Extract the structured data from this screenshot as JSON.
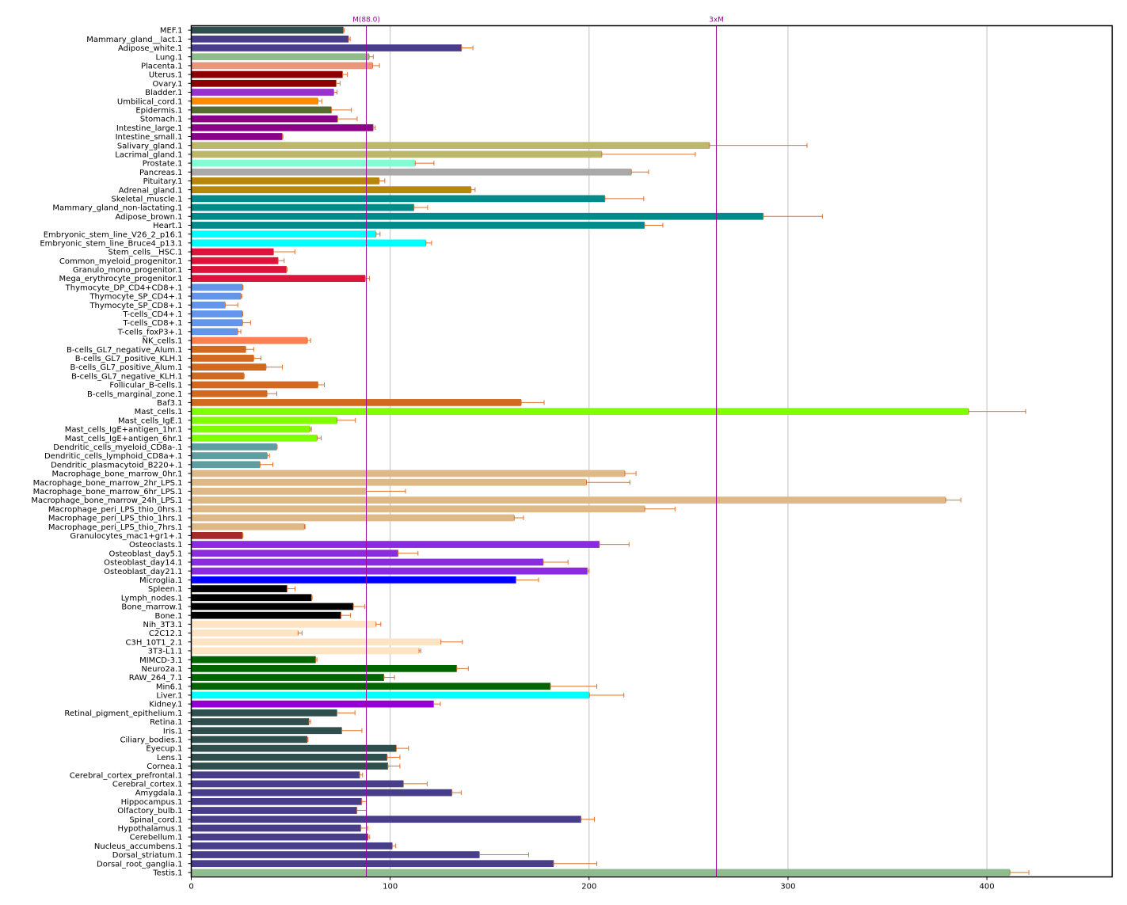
{
  "chart_data": {
    "type": "bar",
    "orientation": "horizontal",
    "title": "",
    "xlabel": "",
    "ylabel": "",
    "xlim": [
      0,
      463
    ],
    "xticks": [
      0,
      100,
      200,
      300,
      400
    ],
    "grid": "vertical",
    "legend": "none",
    "error_bar_color": "#e0702a",
    "reference_lines": [
      {
        "label": "M(88.0)",
        "value": 88.0,
        "color": "#990099"
      },
      {
        "label": "3xM",
        "value": 264.0,
        "color": "#990099"
      }
    ],
    "bars": [
      {
        "label": "MEF.1",
        "value": 76.5,
        "err": 0.5,
        "color": "#2f4f4f"
      },
      {
        "label": "Mammary_gland__lact.1",
        "value": 79.1,
        "err": 0.8,
        "color": "#483d8b"
      },
      {
        "label": "Adipose_white.1",
        "value": 135.9,
        "err": 5.7,
        "color": "#483d8b"
      },
      {
        "label": "Lung.1",
        "value": 89.4,
        "err": 2.1,
        "color": "#8fbc8f"
      },
      {
        "label": "Placenta.1",
        "value": 91.2,
        "err": 3.4,
        "color": "#e9967a"
      },
      {
        "label": "Uterus.1",
        "value": 76.1,
        "err": 2.4,
        "color": "#8b0000"
      },
      {
        "label": "Ovary.1",
        "value": 72.9,
        "err": 1.9,
        "color": "#8b0000"
      },
      {
        "label": "Bladder.1",
        "value": 71.7,
        "err": 1.6,
        "color": "#9932cc"
      },
      {
        "label": "Umbilical_cord.1",
        "value": 63.7,
        "err": 1.9,
        "color": "#ff8c00"
      },
      {
        "label": "Epidermis.1",
        "value": 70.5,
        "err": 10.0,
        "color": "#556b2f"
      },
      {
        "label": "Stomach.1",
        "value": 73.6,
        "err": 9.8,
        "color": "#8b008b"
      },
      {
        "label": "Intestine_large.1",
        "value": 91.5,
        "err": 1.0,
        "color": "#8b008b"
      },
      {
        "label": "Intestine_small.1",
        "value": 45.8,
        "err": 0.3,
        "color": "#8b008b"
      },
      {
        "label": "Salivary_gland.1",
        "value": 260.6,
        "err": 49.0,
        "color": "#bdb76b"
      },
      {
        "label": "Lacrimal_gland.1",
        "value": 206.4,
        "err": 47.0,
        "color": "#bdb76b"
      },
      {
        "label": "Prostate.1",
        "value": 112.6,
        "err": 9.4,
        "color": "#7fffd4"
      },
      {
        "label": "Pancreas.1",
        "value": 221.3,
        "err": 8.6,
        "color": "#a9a9a9"
      },
      {
        "label": "Pituitary.1",
        "value": 94.5,
        "err": 2.8,
        "color": "#b8860b"
      },
      {
        "label": "Adrenal_gland.1",
        "value": 140.7,
        "err": 2.0,
        "color": "#b8860b"
      },
      {
        "label": "Skeletal_muscle.1",
        "value": 208.0,
        "err": 19.5,
        "color": "#008b8b"
      },
      {
        "label": "Mammary_gland_non-lactating.1",
        "value": 112.0,
        "err": 6.8,
        "color": "#008b8b"
      },
      {
        "label": "Adipose_brown.1",
        "value": 287.6,
        "err": 29.7,
        "color": "#008b8b"
      },
      {
        "label": "Heart.1",
        "value": 227.9,
        "err": 9.2,
        "color": "#008b8b"
      },
      {
        "label": "Embryonic_stem_line_V26_2_p16.1",
        "value": 92.9,
        "err": 2.0,
        "color": "#00ffff"
      },
      {
        "label": "Embryonic_stem_line_Bruce4_p13.1",
        "value": 118.0,
        "err": 2.8,
        "color": "#00ffff"
      },
      {
        "label": "Stem_cells__HSC.1",
        "value": 41.4,
        "err": 10.7,
        "color": "#dc143c"
      },
      {
        "label": "Common_myeloid_progenitor.1",
        "value": 43.7,
        "err": 3.0,
        "color": "#dc143c"
      },
      {
        "label": "Granulo_mono_progenitor.1",
        "value": 47.9,
        "err": 0.3,
        "color": "#dc143c"
      },
      {
        "label": "Mega_erythrocyte_progenitor.1",
        "value": 87.5,
        "err": 2.1,
        "color": "#dc143c"
      },
      {
        "label": "Thymocyte_DP_CD4+CD8+.1",
        "value": 25.8,
        "err": 0.2,
        "color": "#6495ed"
      },
      {
        "label": "Thymocyte_SP_CD4+.1",
        "value": 25.0,
        "err": 0.4,
        "color": "#6495ed"
      },
      {
        "label": "Thymocyte_SP_CD8+.1",
        "value": 17.1,
        "err": 6.3,
        "color": "#6495ed"
      },
      {
        "label": "T-cells_CD4+.1",
        "value": 25.7,
        "err": 0.2,
        "color": "#6495ed"
      },
      {
        "label": "T-cells_CD8+.1",
        "value": 25.8,
        "err": 4.0,
        "color": "#6495ed"
      },
      {
        "label": "T-cells_foxP3+.1",
        "value": 23.4,
        "err": 1.5,
        "color": "#6495ed"
      },
      {
        "label": "NK_cells.1",
        "value": 58.4,
        "err": 1.6,
        "color": "#ff7f50"
      },
      {
        "label": "B-cells_GL7_negative_Alum.1",
        "value": 27.4,
        "err": 4.0,
        "color": "#d2691e"
      },
      {
        "label": "B-cells_GL7_positive_KLH.1",
        "value": 31.4,
        "err": 3.6,
        "color": "#d2691e"
      },
      {
        "label": "B-cells_GL7_positive_Alum.1",
        "value": 37.6,
        "err": 8.2,
        "color": "#d2691e"
      },
      {
        "label": "B-cells_GL7_negative_KLH.1",
        "value": 26.4,
        "err": 0.2,
        "color": "#d2691e"
      },
      {
        "label": "Follicular_B-cells.1",
        "value": 63.7,
        "err": 3.2,
        "color": "#d2691e"
      },
      {
        "label": "B-cells_marginal_zone.1",
        "value": 38.1,
        "err": 4.9,
        "color": "#d2691e"
      },
      {
        "label": "Baf3.1",
        "value": 165.9,
        "err": 11.5,
        "color": "#d2691e"
      },
      {
        "label": "Mast_cells.1",
        "value": 390.8,
        "err": 28.7,
        "color": "#7fff00"
      },
      {
        "label": "Mast_cells_IgE.1",
        "value": 73.3,
        "err": 9.2,
        "color": "#7fff00"
      },
      {
        "label": "Mast_cells_IgE+antigen_1hr.1",
        "value": 59.7,
        "err": 0.7,
        "color": "#7fff00"
      },
      {
        "label": "Mast_cells_IgE+antigen_6hr.1",
        "value": 63.3,
        "err": 2.0,
        "color": "#7fff00"
      },
      {
        "label": "Dendritic_cells_myeloid_CD8a-.1",
        "value": 43.0,
        "err": 0.2,
        "color": "#5f9ea0"
      },
      {
        "label": "Dendritic_cells_lymphoid_CD8a+.1",
        "value": 38.2,
        "err": 1.1,
        "color": "#5f9ea0"
      },
      {
        "label": "Dendritic_plasmacytoid_B220+.1",
        "value": 34.6,
        "err": 6.4,
        "color": "#5f9ea0"
      },
      {
        "label": "Macrophage_bone_marrow_0hr.1",
        "value": 218.0,
        "err": 5.6,
        "color": "#deb887"
      },
      {
        "label": "Macrophage_bone_marrow_2hr_LPS.1",
        "value": 198.7,
        "err": 21.8,
        "color": "#deb887"
      },
      {
        "label": "Macrophage_bone_marrow_6hr_LPS.1",
        "value": 88.0,
        "err": 19.7,
        "color": "#deb887"
      },
      {
        "label": "Macrophage_bone_marrow_24h_LPS.1",
        "value": 379.3,
        "err": 7.6,
        "color": "#deb887"
      },
      {
        "label": "Macrophage_peri_LPS_thio_0hrs.1",
        "value": 228.0,
        "err": 15.2,
        "color": "#deb887"
      },
      {
        "label": "Macrophage_peri_LPS_thio_1hrs.1",
        "value": 162.4,
        "err": 4.6,
        "color": "#deb887"
      },
      {
        "label": "Macrophage_peri_LPS_thio_7hrs.1",
        "value": 56.9,
        "err": 0.3,
        "color": "#deb887"
      },
      {
        "label": "Granulocytes_mac1+gr1+.1",
        "value": 25.8,
        "err": 0.2,
        "color": "#a52a2a"
      },
      {
        "label": "Osteoclasts.1",
        "value": 205.2,
        "err": 14.9,
        "color": "#8a2be2"
      },
      {
        "label": "Osteoblast_day5.1",
        "value": 104.0,
        "err": 10.0,
        "color": "#8a2be2"
      },
      {
        "label": "Osteoblast_day14.1",
        "value": 177.0,
        "err": 12.4,
        "color": "#8a2be2"
      },
      {
        "label": "Osteoblast_day21.1",
        "value": 199.2,
        "err": 0.8,
        "color": "#8a2be2"
      },
      {
        "label": "Microglia.1",
        "value": 163.3,
        "err": 11.3,
        "color": "#0000ff"
      },
      {
        "label": "Spleen.1",
        "value": 48.2,
        "err": 4.0,
        "color": "#000000"
      },
      {
        "label": "Lymph_nodes.1",
        "value": 60.5,
        "err": 0.3,
        "color": "#000000"
      },
      {
        "label": "Bone_marrow.1",
        "value": 81.5,
        "err": 5.8,
        "color": "#000000"
      },
      {
        "label": "Bone.1",
        "value": 75.3,
        "err": 4.8,
        "color": "#000000"
      },
      {
        "label": "Nih_3T3.1",
        "value": 92.9,
        "err": 2.4,
        "color": "#ffe4c4"
      },
      {
        "label": "C2C12.1",
        "value": 53.7,
        "err": 2.0,
        "color": "#ffe4c4"
      },
      {
        "label": "C3H_10T1_2.1",
        "value": 125.5,
        "err": 10.8,
        "color": "#ffe4c4"
      },
      {
        "label": "3T3-L1.1",
        "value": 114.5,
        "err": 0.9,
        "color": "#ffe4c4"
      },
      {
        "label": "MIMCD-3.1",
        "value": 62.6,
        "err": 0.6,
        "color": "#006400"
      },
      {
        "label": "Neuro2a.1",
        "value": 133.5,
        "err": 5.8,
        "color": "#006400"
      },
      {
        "label": "RAW_264_7.1",
        "value": 96.9,
        "err": 5.3,
        "color": "#006400"
      },
      {
        "label": "Min6.1",
        "value": 180.6,
        "err": 23.3,
        "color": "#006400"
      },
      {
        "label": "Liver.1",
        "value": 200.2,
        "err": 17.3,
        "color": "#00ffff"
      },
      {
        "label": "Kidney.1",
        "value": 121.9,
        "err": 3.3,
        "color": "#9400d3"
      },
      {
        "label": "Retinal_pigment_epithelium.1",
        "value": 73.3,
        "err": 9.0,
        "color": "#2f4f4f"
      },
      {
        "label": "Retina.1",
        "value": 59.2,
        "err": 0.8,
        "color": "#2f4f4f"
      },
      {
        "label": "Iris.1",
        "value": 75.7,
        "err": 10.1,
        "color": "#2f4f4f"
      },
      {
        "label": "Ciliary_bodies.1",
        "value": 58.4,
        "err": 0.3,
        "color": "#2f4f4f"
      },
      {
        "label": "Eyecup.1",
        "value": 103.1,
        "err": 6.1,
        "color": "#2f4f4f"
      },
      {
        "label": "Lens.1",
        "value": 98.5,
        "err": 6.4,
        "color": "#2f4f4f"
      },
      {
        "label": "Cornea.1",
        "value": 98.9,
        "err": 6.0,
        "color": "#2f4f4f"
      },
      {
        "label": "Cerebral_cortex_prefrontal.1",
        "value": 84.7,
        "err": 1.4,
        "color": "#483d8b"
      },
      {
        "label": "Cerebral_cortex.1",
        "value": 106.7,
        "err": 11.9,
        "color": "#483d8b"
      },
      {
        "label": "Amygdala.1",
        "value": 131.1,
        "err": 4.6,
        "color": "#483d8b"
      },
      {
        "label": "Hippocampus.1",
        "value": 85.7,
        "err": 2.3,
        "color": "#483d8b"
      },
      {
        "label": "Olfactory_bulb.1",
        "value": 83.3,
        "err": 4.7,
        "color": "#483d8b"
      },
      {
        "label": "Spinal_cord.1",
        "value": 196.0,
        "err": 6.7,
        "color": "#483d8b"
      },
      {
        "label": "Hypothalamus.1",
        "value": 85.3,
        "err": 3.4,
        "color": "#483d8b"
      },
      {
        "label": "Cerebellum.1",
        "value": 88.9,
        "err": 0.8,
        "color": "#483d8b"
      },
      {
        "label": "Nucleus_accumbens.1",
        "value": 101.1,
        "err": 1.7,
        "color": "#483d8b"
      },
      {
        "label": "Dorsal_striatum.1",
        "value": 144.9,
        "err": 24.7,
        "color": "#483d8b"
      },
      {
        "label": "Dorsal_root_ganglia.1",
        "value": 182.2,
        "err": 21.7,
        "color": "#483d8b"
      },
      {
        "label": "Testis.1",
        "value": 411.6,
        "err": 9.5,
        "color": "#8fbc8f"
      }
    ]
  }
}
